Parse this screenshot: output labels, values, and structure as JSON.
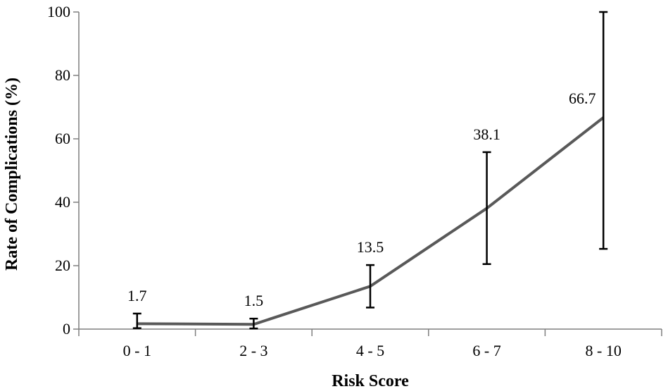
{
  "chart_data": {
    "type": "line",
    "categories": [
      "0 - 1",
      "2 - 3",
      "4 - 5",
      "6 - 7",
      "8 - 10"
    ],
    "values": [
      1.7,
      1.5,
      13.5,
      38.1,
      66.7
    ],
    "error_low": [
      0.3,
      0.2,
      6.8,
      20.5,
      25.3
    ],
    "error_high": [
      4.9,
      3.3,
      20.2,
      55.8,
      100
    ],
    "data_labels": [
      "1.7",
      "1.5",
      "13.5",
      "38.1",
      "66.7"
    ],
    "xlabel": "Risk Score",
    "ylabel": "Rate of Complications (%)",
    "ylim": [
      0,
      100
    ],
    "yticks": [
      0,
      20,
      40,
      60,
      80,
      100
    ],
    "ytick_labels": [
      "0",
      "20",
      "40",
      "60",
      "80",
      "100"
    ],
    "grid": false,
    "legend": "none",
    "line_color": "#595959",
    "error_color": "#000000"
  }
}
